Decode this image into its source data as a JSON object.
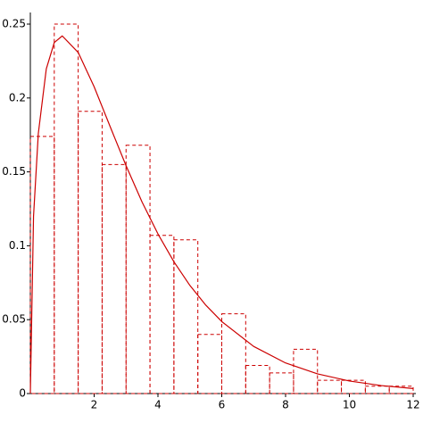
{
  "chart_data": {
    "type": "histogram",
    "bins": [
      0,
      0.75,
      1.5,
      2.25,
      3,
      3.75,
      4.5,
      5.25,
      6,
      6.75,
      7.5,
      8.25,
      9,
      9.75,
      10.5,
      11.25,
      12
    ],
    "values": [
      0.174,
      0.25,
      0.191,
      0.155,
      0.168,
      0.107,
      0.104,
      0.04,
      0.054,
      0.019,
      0.014,
      0.03,
      0.009,
      0.009,
      0.005,
      0.005
    ],
    "color": "#cc0000",
    "curve": {
      "x": [
        0,
        0.1,
        0.25,
        0.5,
        0.75,
        1,
        1.5,
        2,
        2.5,
        3,
        3.5,
        4,
        4.5,
        5,
        5.5,
        6,
        7,
        8,
        9,
        10,
        11,
        12
      ],
      "y": [
        0,
        0.12,
        0.176,
        0.2197,
        0.2375,
        0.242,
        0.2308,
        0.2076,
        0.1807,
        0.1542,
        0.1297,
        0.108,
        0.0892,
        0.0732,
        0.0598,
        0.0487,
        0.0319,
        0.0207,
        0.0133,
        0.0085,
        0.0054,
        0.0034
      ]
    },
    "xlim": [
      0,
      12
    ],
    "ylim": [
      0,
      0.25
    ],
    "xticks": [
      2,
      4,
      6,
      8,
      10,
      12
    ],
    "yticks": [
      0,
      0.05,
      0.1,
      0.15,
      0.2,
      0.25
    ]
  }
}
